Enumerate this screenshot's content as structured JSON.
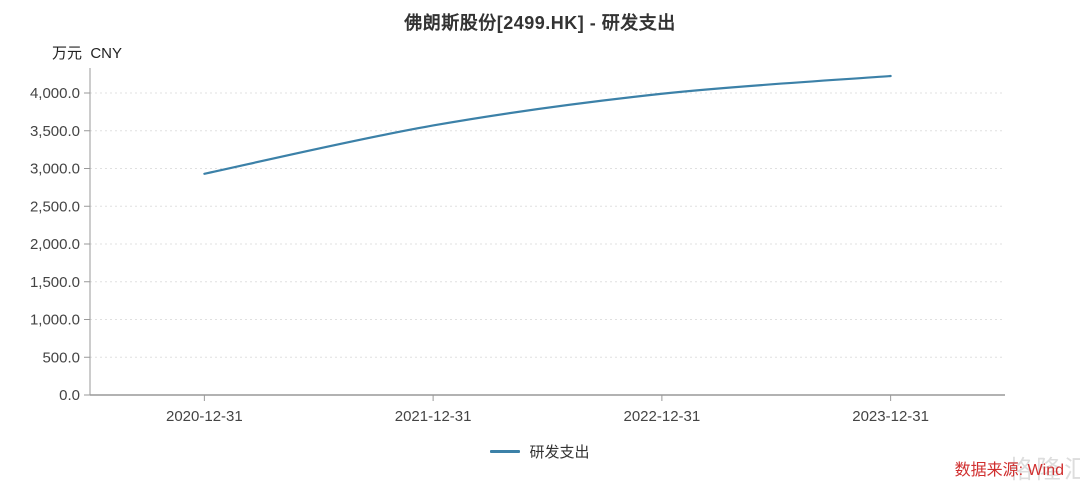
{
  "header": {
    "title": "佛朗斯股份[2499.HK] - 研发支出"
  },
  "chart": {
    "unit_label": "万元  CNY",
    "legend": "研发支出"
  },
  "footer": {
    "source": "数据来源: Wind",
    "watermark": "格隆汇"
  },
  "chart_data": {
    "type": "line",
    "title": "佛朗斯股份[2499.HK] - 研发支出",
    "ylabel": "万元 CNY",
    "xlabel": "",
    "categories": [
      "2020-12-31",
      "2021-12-31",
      "2022-12-31",
      "2023-12-31"
    ],
    "series": [
      {
        "name": "研发支出",
        "values": [
          2930,
          3570,
          3990,
          4225
        ]
      }
    ],
    "y_ticks": [
      0,
      500,
      1000,
      1500,
      2000,
      2500,
      3000,
      3500,
      4000
    ],
    "ylim": [
      0,
      4400
    ],
    "grid": "horizontal-dotted",
    "legend_position": "bottom-center",
    "line_color": "#3c81a8",
    "axis_color": "#999999",
    "gridline_color": "#e0e0e0",
    "label_color": "#444444",
    "source_color": "#d02e2e"
  }
}
